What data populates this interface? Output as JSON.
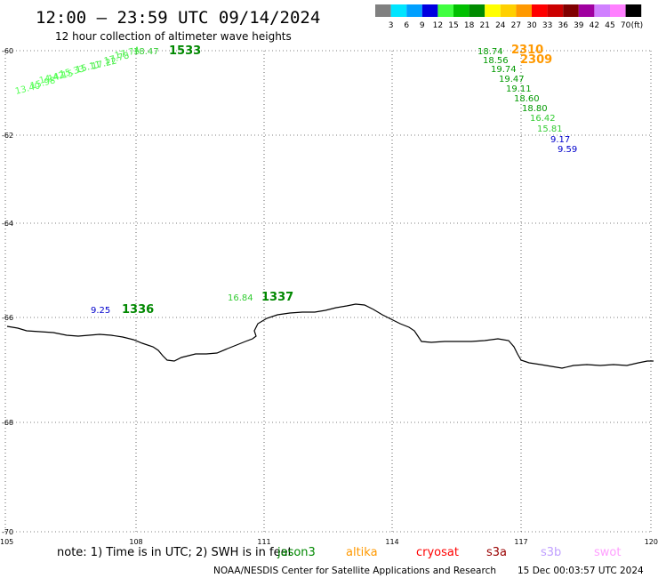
{
  "header": {
    "title": "12:00 – 23:59 UTC 09/14/2024",
    "subtitle": "12 hour collection of altimeter wave heights"
  },
  "legend": {
    "unit": "(ft)",
    "bins": [
      {
        "label": "3",
        "color": "#808080"
      },
      {
        "label": "6",
        "color": "#00e5ff"
      },
      {
        "label": "9",
        "color": "#00a0ff"
      },
      {
        "label": "12",
        "color": "#0000e0"
      },
      {
        "label": "15",
        "color": "#40ff40"
      },
      {
        "label": "18",
        "color": "#00c000"
      },
      {
        "label": "21",
        "color": "#008c00"
      },
      {
        "label": "24",
        "color": "#ffff00"
      },
      {
        "label": "27",
        "color": "#ffd000"
      },
      {
        "label": "30",
        "color": "#ff9900"
      },
      {
        "label": "33",
        "color": "#ff0000"
      },
      {
        "label": "36",
        "color": "#cc0000"
      },
      {
        "label": "39",
        "color": "#800000"
      },
      {
        "label": "42",
        "color": "#a000a0"
      },
      {
        "label": "45",
        "color": "#d080ff"
      },
      {
        "label": "70",
        "color": "#ff80ff"
      },
      {
        "label": "",
        "color": "#000000"
      }
    ]
  },
  "axes": {
    "lat_labels": [
      "-60",
      "-62",
      "-64",
      "-66",
      "-68",
      "-70"
    ],
    "lon_labels": [
      "105",
      "108",
      "111",
      "114",
      "117",
      "120"
    ]
  },
  "observations": [
    {
      "value": "18.47",
      "color": "#33cc33"
    },
    {
      "value": "17.74",
      "color": "#44ee44"
    },
    {
      "value": "17.78",
      "color": "#44ee44"
    },
    {
      "value": "17.22",
      "color": "#44ee44"
    },
    {
      "value": "15.11",
      "color": "#44ee44"
    },
    {
      "value": "15.33",
      "color": "#55ff55"
    },
    {
      "value": "14.15",
      "color": "#55ff55"
    },
    {
      "value": "15.98",
      "color": "#55ff55"
    },
    {
      "value": "14.42",
      "color": "#55ff55"
    },
    {
      "value": "13.40",
      "color": "#55ff55"
    },
    {
      "value": "18.74",
      "color": "#009900"
    },
    {
      "value": "18.56",
      "color": "#009900"
    },
    {
      "value": "19.74",
      "color": "#009900"
    },
    {
      "value": "19.47",
      "color": "#009900"
    },
    {
      "value": "19.11",
      "color": "#009900"
    },
    {
      "value": "18.60",
      "color": "#009900"
    },
    {
      "value": "18.80",
      "color": "#009900"
    },
    {
      "value": "16.42",
      "color": "#33cc33"
    },
    {
      "value": "15.81",
      "color": "#33cc33"
    },
    {
      "value": "9.17",
      "color": "#0000cc"
    },
    {
      "value": "9.59",
      "color": "#0000cc"
    },
    {
      "value": "9.25",
      "color": "#0000cc"
    },
    {
      "value": "16.84",
      "color": "#33cc33"
    }
  ],
  "pass_times": [
    {
      "time": "1533",
      "color": "#008800"
    },
    {
      "time": "2310",
      "color": "#ff9900"
    },
    {
      "time": "2309",
      "color": "#ff9900"
    },
    {
      "time": "1336",
      "color": "#008800"
    },
    {
      "time": "1337",
      "color": "#008800"
    }
  ],
  "footer": {
    "note": "note: 1) Time is in UTC; 2) SWH is in feet",
    "satellites": [
      {
        "name": "jason3",
        "color": "#008800"
      },
      {
        "name": "altika",
        "color": "#ff9900"
      },
      {
        "name": "cryosat",
        "color": "#ff0000"
      },
      {
        "name": "s3a",
        "color": "#990000"
      },
      {
        "name": "s3b",
        "color": "#c0a0ff"
      },
      {
        "name": "swot",
        "color": "#ffa0ff"
      }
    ],
    "credit": "NOAA/NESDIS Center for Satellite Applications and Research",
    "timestamp": "15 Dec 00:03:57 UTC 2024"
  }
}
